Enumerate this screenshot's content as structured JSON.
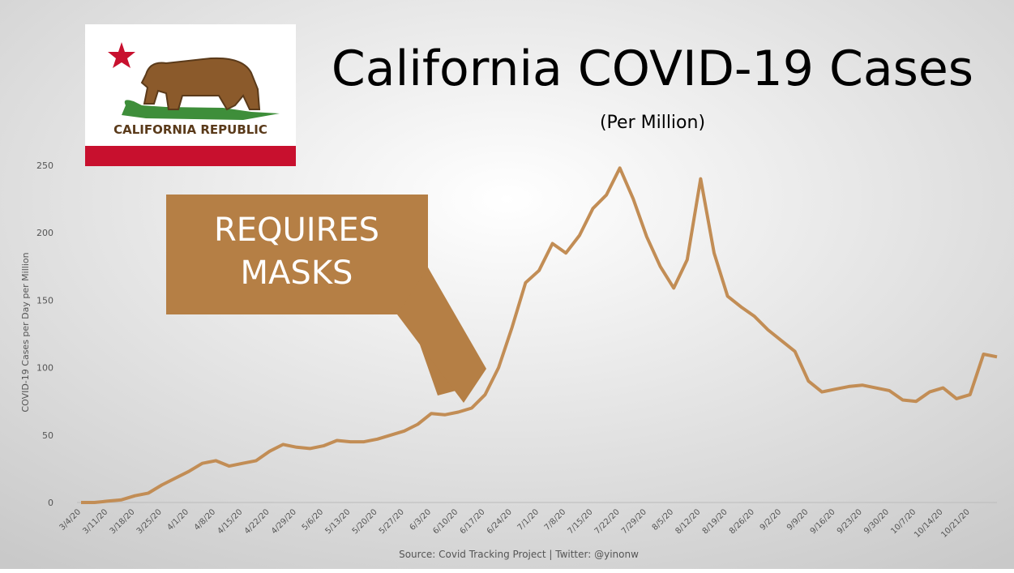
{
  "chart_data": {
    "type": "line",
    "title": "California COVID-19 Cases",
    "subtitle": "(Per Million)",
    "y_label": "COVID-19 Cases per Day per Million",
    "source": "Source: Covid Tracking Project | Twitter: @yinonw",
    "flag_text": "CALIFORNIA REPUBLIC",
    "annotation": [
      "REQUIRES",
      "MASKS"
    ],
    "color": "#c28d55",
    "ylim": [
      0,
      250
    ],
    "yticks": [
      0,
      50,
      100,
      150,
      200,
      250
    ],
    "categories": [
      "3/4/20",
      null,
      "3/11/20",
      null,
      "3/18/20",
      null,
      "3/25/20",
      null,
      "4/1/20",
      null,
      "4/8/20",
      null,
      "4/15/20",
      null,
      "4/22/20",
      null,
      "4/29/20",
      null,
      "5/6/20",
      null,
      "5/13/20",
      null,
      "5/20/20",
      null,
      "5/27/20",
      null,
      "6/3/20",
      null,
      "6/10/20",
      null,
      "6/17/20",
      null,
      "6/24/20",
      null,
      "7/1/20",
      null,
      "7/8/20",
      null,
      "7/15/20",
      null,
      "7/22/20",
      null,
      "7/29/20",
      null,
      "8/5/20",
      null,
      "8/12/20",
      null,
      "8/19/20",
      null,
      "8/26/20",
      null,
      "9/2/20",
      null,
      "9/9/20",
      null,
      "9/16/20",
      null,
      "9/23/20",
      null,
      "9/30/20",
      null,
      "10/7/20",
      null,
      "10/14/20",
      null,
      "10/21/20",
      null,
      null
    ],
    "values": [
      0,
      0,
      1,
      2,
      5,
      7,
      13,
      18,
      23,
      29,
      31,
      27,
      29,
      31,
      38,
      43,
      41,
      40,
      42,
      46,
      45,
      45,
      47,
      50,
      53,
      58,
      66,
      65,
      67,
      70,
      80,
      100,
      130,
      163,
      172,
      192,
      185,
      198,
      218,
      228,
      248,
      225,
      197,
      175,
      159,
      180,
      240,
      185,
      153,
      145,
      138,
      128,
      120,
      112,
      90,
      82,
      84,
      86,
      87,
      85,
      83,
      76,
      75,
      82,
      85,
      77,
      80,
      110,
      108
    ]
  }
}
